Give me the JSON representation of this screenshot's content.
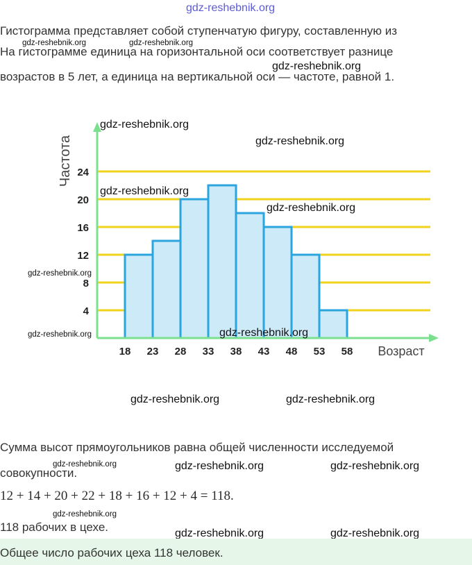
{
  "watermark": "gdz-reshebnik.org",
  "intro": {
    "line1": "Гистограмма представляет собой ступенчатую фигуру, составленную из",
    "line2": "На гистограмме единица на горизонтальной оси соответствует разнице",
    "line3": "возрастов в 5 лет, а единица на вертикальной оси — частоте, равной 1."
  },
  "chart_data": {
    "type": "bar",
    "xlabel": "Возраст",
    "ylabel": "Частота",
    "x_ticks": [
      "18",
      "23",
      "28",
      "33",
      "38",
      "43",
      "48",
      "53",
      "58"
    ],
    "bins": [
      {
        "from": 18,
        "to": 23,
        "value": 12
      },
      {
        "from": 23,
        "to": 28,
        "value": 14
      },
      {
        "from": 28,
        "to": 33,
        "value": 20
      },
      {
        "from": 33,
        "to": 38,
        "value": 22
      },
      {
        "from": 38,
        "to": 43,
        "value": 18
      },
      {
        "from": 43,
        "to": 48,
        "value": 16
      },
      {
        "from": 48,
        "to": 53,
        "value": 12
      },
      {
        "from": 53,
        "to": 58,
        "value": 4
      }
    ],
    "y_ticks": [
      4,
      8,
      12,
      16,
      20,
      24
    ],
    "ylim": [
      0,
      28
    ],
    "xlim": [
      18,
      58
    ],
    "grid": true,
    "colors": {
      "bar_fill": "#cdeaf8",
      "bar_stroke": "#2aa5e0",
      "grid": "#f2d21b",
      "axis": "#7be08d"
    }
  },
  "sum_text": {
    "line1": "Сумма высот прямоугольников равна общей численности исследуемой",
    "line2": "совокупности."
  },
  "equation": "12 + 14 + 20 + 22 + 18 + 16 + 12 + 4 = 118.",
  "result": "118 рабочих в цехе.",
  "answer": "Общее число рабочих цеха 118 человек."
}
